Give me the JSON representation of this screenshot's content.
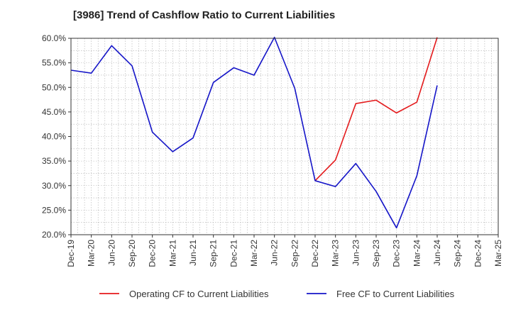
{
  "chart_data": {
    "type": "line",
    "title": "[3986]  Trend of Cashflow Ratio to Current Liabilities",
    "xlabel": "",
    "ylabel": "",
    "categories": [
      "Dec-19",
      "Mar-20",
      "Jun-20",
      "Sep-20",
      "Dec-20",
      "Mar-21",
      "Jun-21",
      "Sep-21",
      "Dec-21",
      "Mar-22",
      "Jun-22",
      "Sep-22",
      "Dec-22",
      "Mar-23",
      "Jun-23",
      "Sep-23",
      "Dec-23",
      "Mar-24",
      "Jun-24",
      "Sep-24",
      "Dec-24",
      "Mar-25"
    ],
    "ylim": [
      20,
      60
    ],
    "yticks": [
      20,
      25,
      30,
      35,
      40,
      45,
      50,
      55,
      60
    ],
    "ytick_labels": [
      "20.0%",
      "25.0%",
      "30.0%",
      "35.0%",
      "40.0%",
      "45.0%",
      "50.0%",
      "55.0%",
      "60.0%"
    ],
    "grid": true,
    "legend_position": "bottom",
    "series": [
      {
        "name": "Operating CF to Current Liabilities",
        "color": "#e41a1c",
        "values": [
          null,
          null,
          null,
          null,
          null,
          null,
          null,
          null,
          null,
          null,
          null,
          null,
          31.0,
          35.2,
          46.7,
          47.4,
          44.8,
          47.0,
          60.2,
          null,
          null,
          null
        ]
      },
      {
        "name": "Free CF to Current Liabilities",
        "color": "#1515c8",
        "values": [
          53.5,
          52.9,
          58.5,
          54.4,
          40.9,
          36.9,
          39.7,
          51.0,
          54.0,
          52.5,
          60.2,
          49.8,
          31.0,
          29.8,
          34.5,
          28.8,
          21.4,
          32.0,
          50.4,
          null,
          null,
          null
        ]
      }
    ]
  }
}
